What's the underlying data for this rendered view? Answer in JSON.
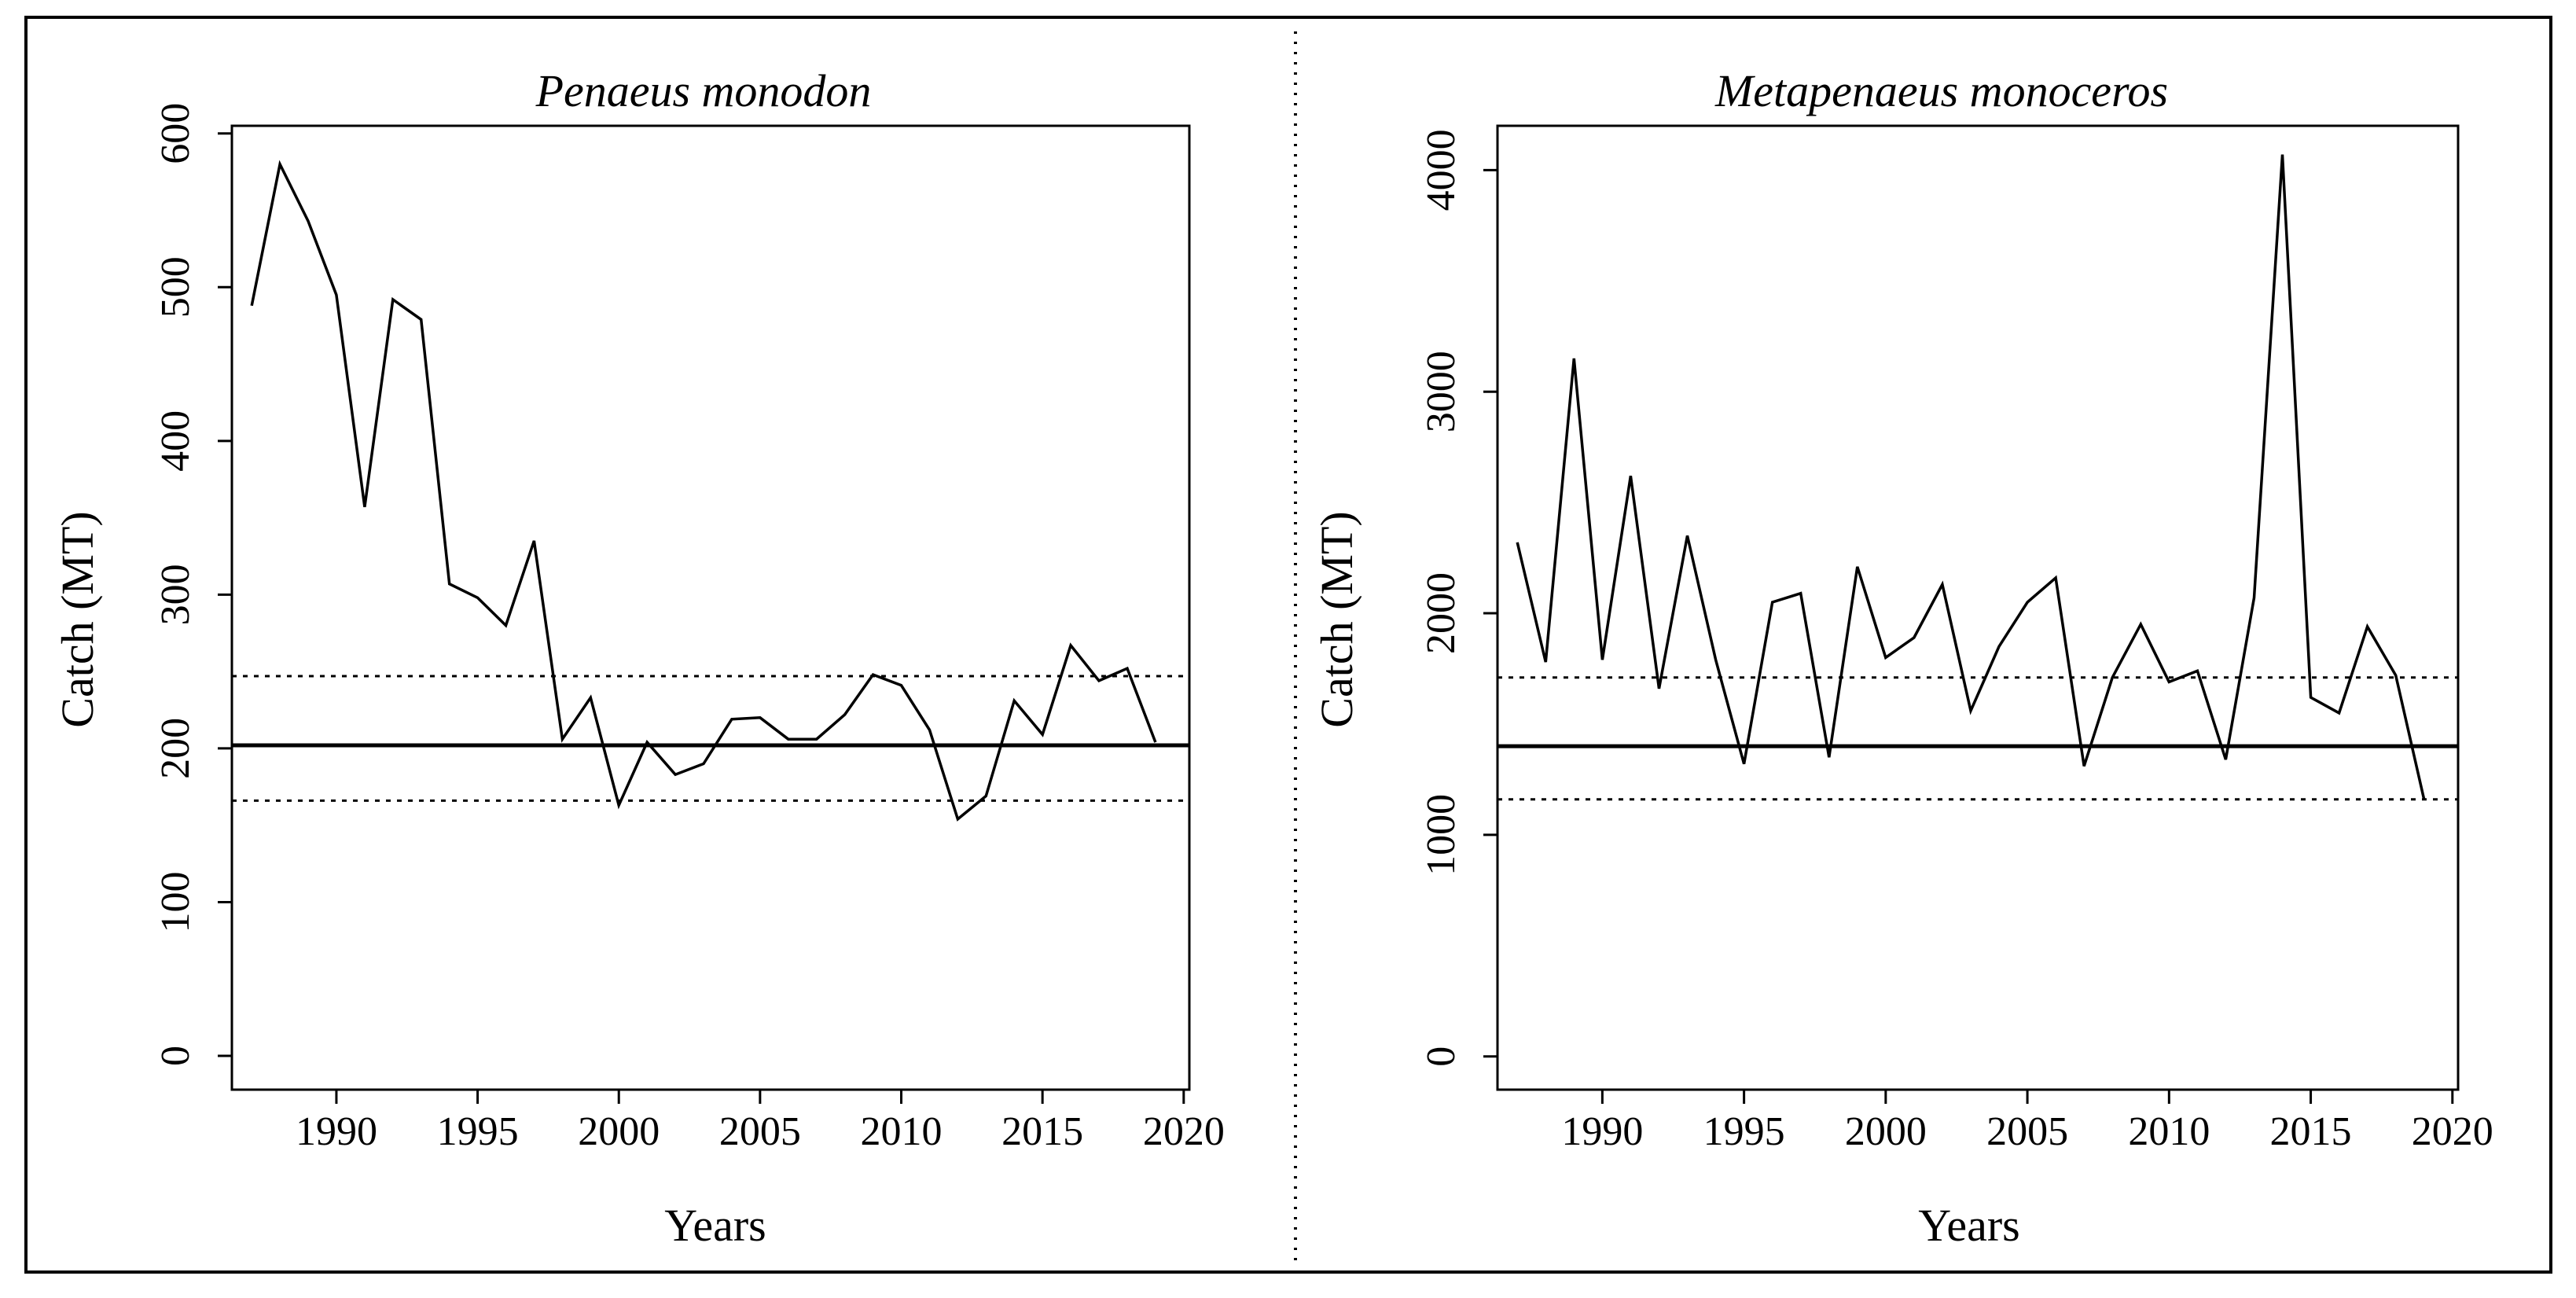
{
  "figure": {
    "line_color": "#000000",
    "background": "#ffffff"
  },
  "chart_data": [
    {
      "type": "line",
      "title": "Penaeus monodon",
      "xlabel": "Years",
      "ylabel": "Catch (MT)",
      "xlim": [
        1986.3,
        2020.2
      ],
      "ylim": [
        -22,
        605
      ],
      "xticks": [
        1990,
        1995,
        2000,
        2005,
        2010,
        2015,
        2020
      ],
      "yticks": [
        0,
        100,
        200,
        300,
        400,
        500,
        600
      ],
      "x": [
        1987,
        1988,
        1989,
        1990,
        1991,
        1992,
        1993,
        1994,
        1995,
        1996,
        1997,
        1998,
        1999,
        2000,
        2001,
        2002,
        2003,
        2004,
        2005,
        2006,
        2007,
        2008,
        2009,
        2010,
        2011,
        2012,
        2013,
        2014,
        2015,
        2016,
        2017,
        2018,
        2019
      ],
      "series": [
        {
          "name": "Catch",
          "values": [
            488,
            580,
            543,
            495,
            357,
            492,
            479,
            307,
            298,
            280,
            335,
            206,
            233,
            163,
            204,
            183,
            190,
            219,
            220,
            206,
            206,
            222,
            248,
            241,
            212,
            154,
            169,
            231,
            209,
            267,
            244,
            252,
            204
          ]
        }
      ],
      "reference_lines": [
        {
          "name": "mean",
          "style": "solid",
          "y": 202
        },
        {
          "name": "upper",
          "style": "dotted",
          "y": 247
        },
        {
          "name": "lower",
          "style": "dotted",
          "y": 166
        }
      ],
      "grid": false
    },
    {
      "type": "line",
      "title": "Metapenaeus monoceros",
      "xlabel": "Years",
      "ylabel": "Catch (MT)",
      "xlim": [
        1986.3,
        2020.2
      ],
      "ylim": [
        -150,
        4200
      ],
      "xticks": [
        1990,
        1995,
        2000,
        2005,
        2010,
        2015,
        2020
      ],
      "yticks": [
        0,
        1000,
        2000,
        3000,
        4000
      ],
      "x": [
        1987,
        1988,
        1989,
        1990,
        1991,
        1992,
        1993,
        1994,
        1995,
        1996,
        1997,
        1998,
        1999,
        2000,
        2001,
        2002,
        2003,
        2004,
        2005,
        2006,
        2007,
        2008,
        2009,
        2010,
        2011,
        2012,
        2013,
        2014,
        2015,
        2016,
        2017,
        2018,
        2019
      ],
      "series": [
        {
          "name": "Catch",
          "values": [
            2320,
            1780,
            3150,
            1790,
            2620,
            1660,
            2350,
            1790,
            1320,
            2050,
            2090,
            1350,
            2210,
            1800,
            1890,
            2130,
            1560,
            1850,
            2050,
            2160,
            1310,
            1710,
            1950,
            1690,
            1740,
            1340,
            2070,
            4070,
            1620,
            1550,
            1940,
            1720,
            1160
          ]
        }
      ],
      "reference_lines": [
        {
          "name": "mean",
          "style": "solid",
          "y": 1400
        },
        {
          "name": "upper",
          "style": "dotted",
          "y": 1710
        },
        {
          "name": "lower",
          "style": "dotted",
          "y": 1160
        }
      ],
      "grid": false
    }
  ]
}
